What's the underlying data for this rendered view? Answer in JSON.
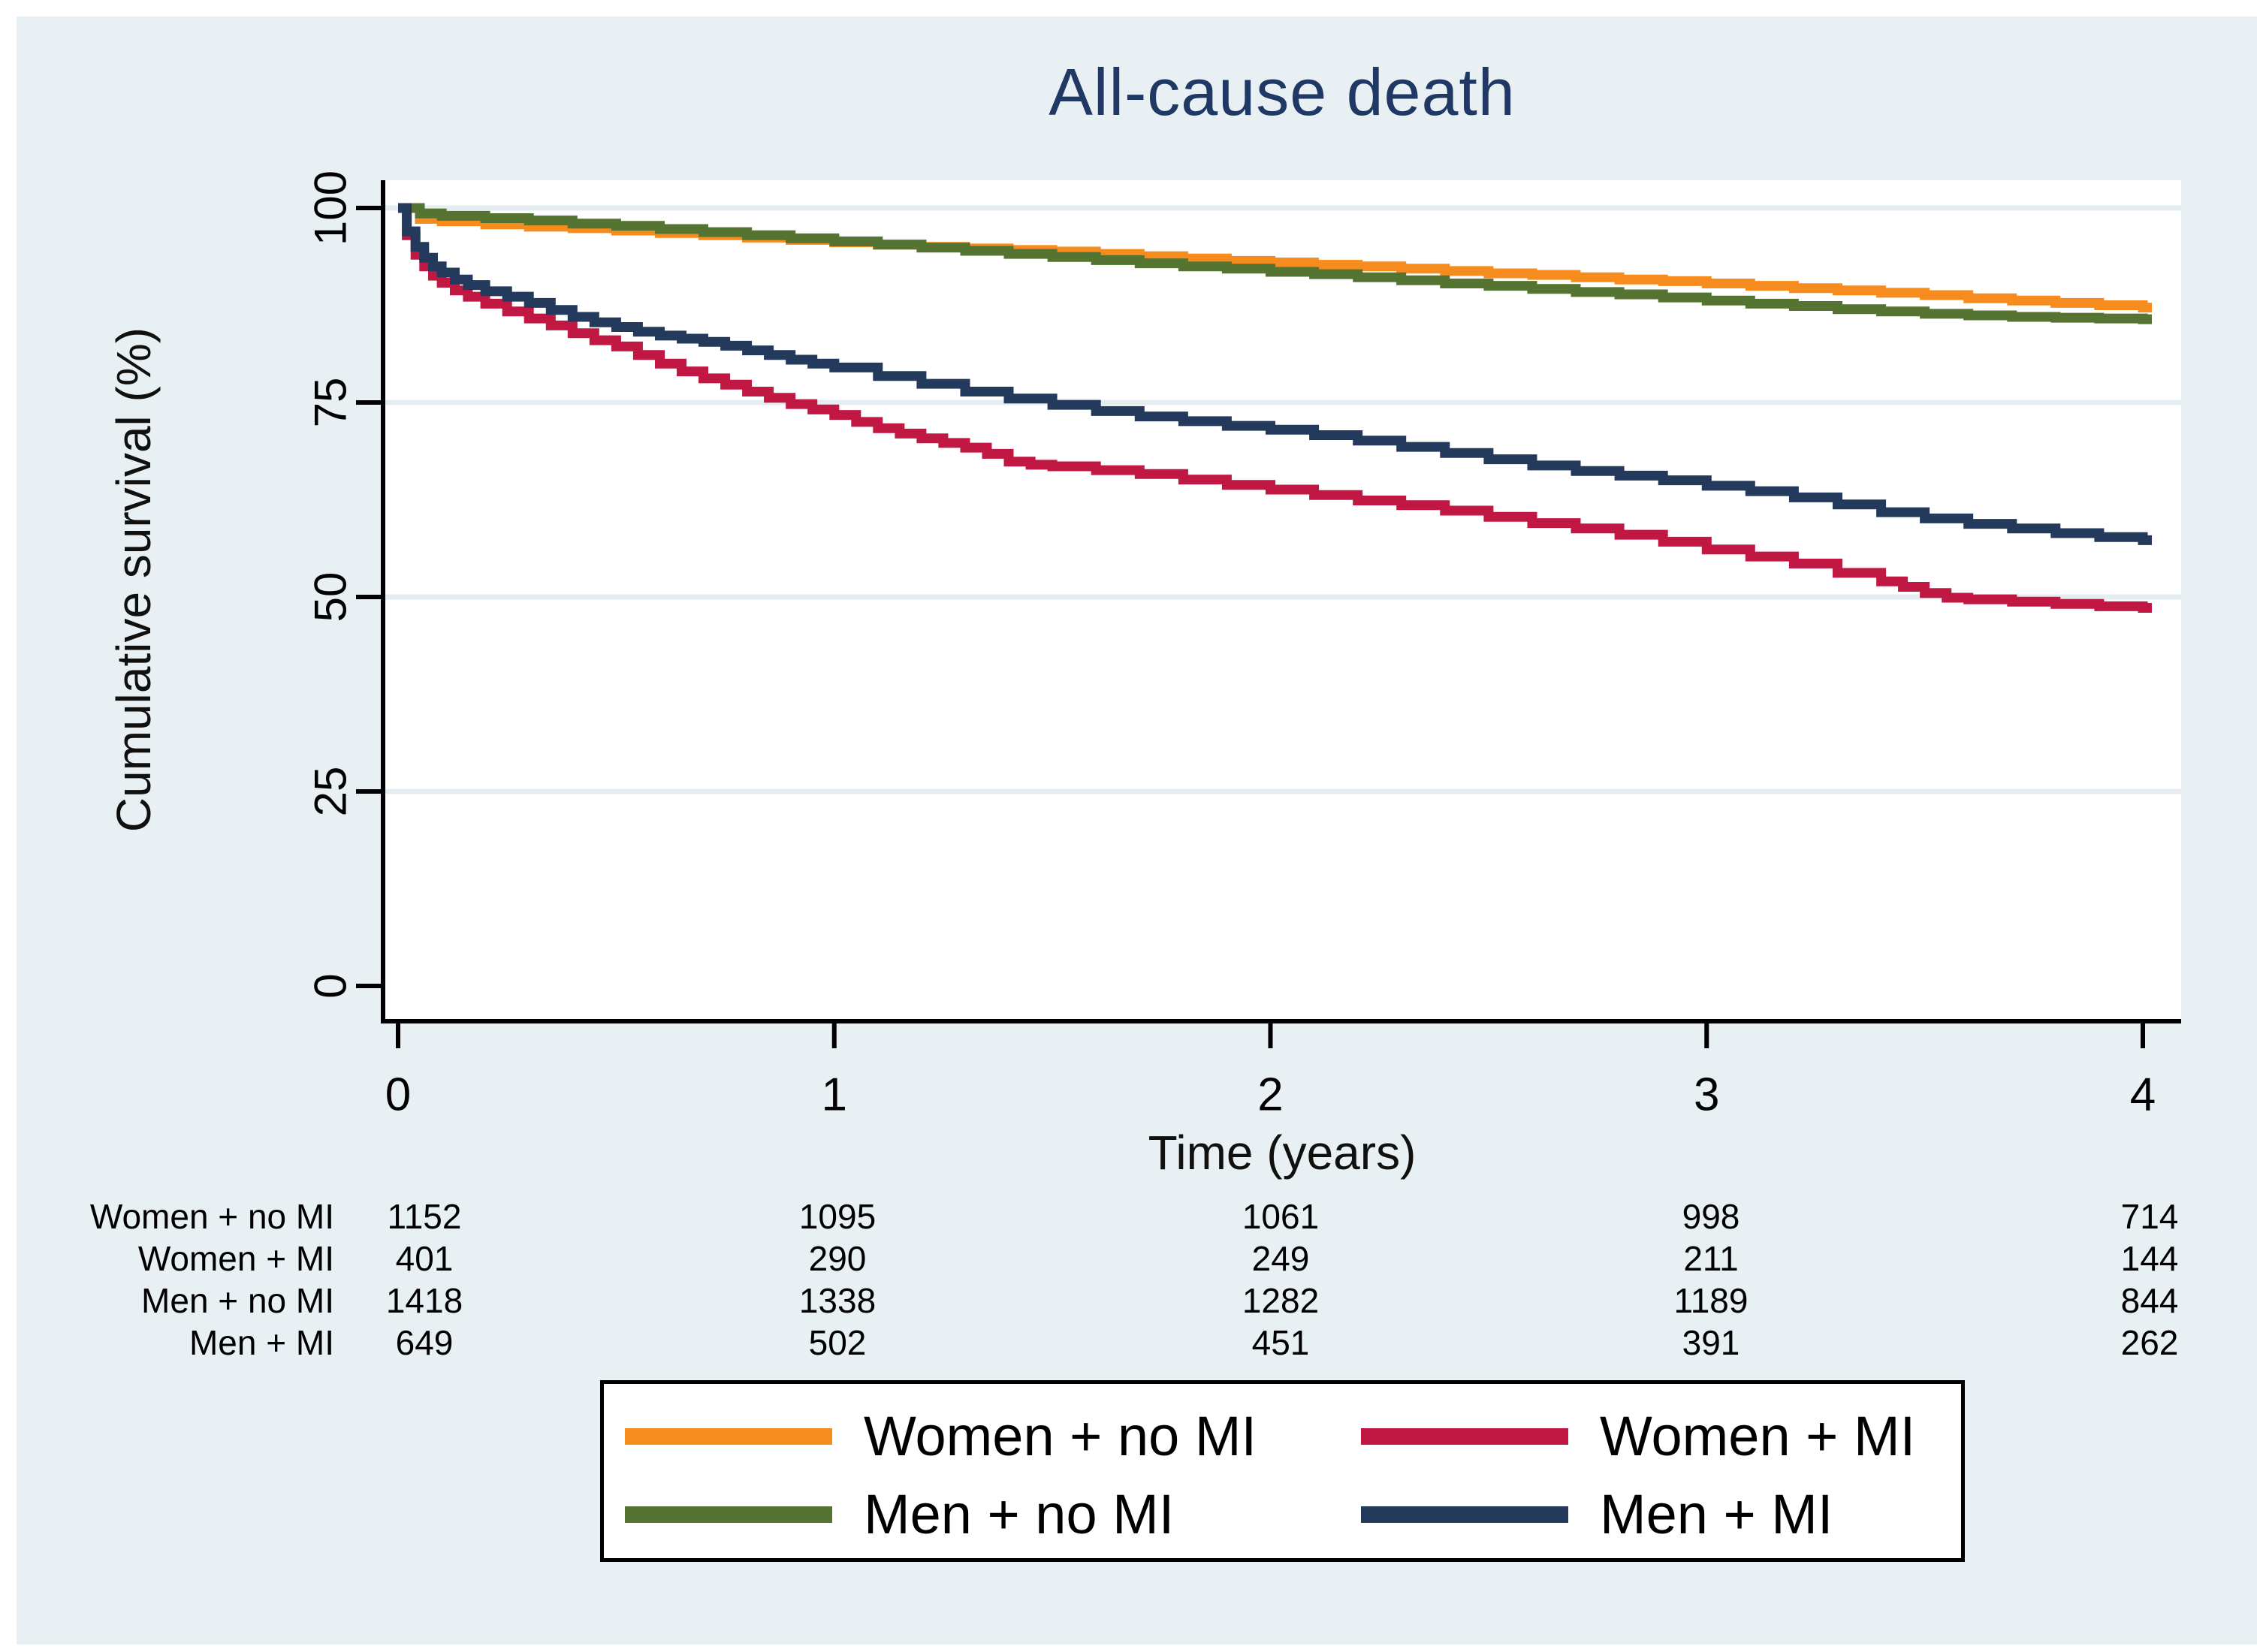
{
  "title": "All-cause death",
  "axes": {
    "xlabel": "Time (years)",
    "ylabel": "Cumulative survival (%)",
    "x_tick_labels": [
      "0",
      "1",
      "2",
      "3",
      "4"
    ],
    "y_tick_labels": [
      "0",
      "25",
      "50",
      "75",
      "100"
    ]
  },
  "colors": {
    "background": "#e9f0f3",
    "plot_background": "#ffffff",
    "gridline": "#e4edf0",
    "axis": "#000000",
    "title_text": "#1f3864",
    "orange": "#f68b1e",
    "cranberry": "#c11743",
    "olive": "#557331",
    "navy": "#233a5c"
  },
  "chart_data": {
    "type": "line",
    "step": true,
    "title": "All-cause death",
    "xlabel": "Time (years)",
    "ylabel": "Cumulative survival (%)",
    "xlim": [
      0,
      4
    ],
    "ylim": [
      0,
      100
    ],
    "x_ticks": [
      0,
      1,
      2,
      3,
      4
    ],
    "y_ticks": [
      0,
      25,
      50,
      75,
      100
    ],
    "grid": "horizontal",
    "legend_position": "bottom-box",
    "series": [
      {
        "name": "Women + no MI",
        "color": "#f68b1e",
        "points": [
          [
            0,
            100
          ],
          [
            0.05,
            98.6
          ],
          [
            0.1,
            98.3
          ],
          [
            0.2,
            97.9
          ],
          [
            0.3,
            97.6
          ],
          [
            0.4,
            97.4
          ],
          [
            0.5,
            97.1
          ],
          [
            0.6,
            96.8
          ],
          [
            0.7,
            96.5
          ],
          [
            0.8,
            96.2
          ],
          [
            0.9,
            95.9
          ],
          [
            1.0,
            95.6
          ],
          [
            1.1,
            95.3
          ],
          [
            1.2,
            95.0
          ],
          [
            1.3,
            94.8
          ],
          [
            1.4,
            94.6
          ],
          [
            1.5,
            94.4
          ],
          [
            1.6,
            94.1
          ],
          [
            1.7,
            93.8
          ],
          [
            1.8,
            93.5
          ],
          [
            1.9,
            93.2
          ],
          [
            2.0,
            93.0
          ],
          [
            2.1,
            92.7
          ],
          [
            2.2,
            92.5
          ],
          [
            2.3,
            92.2
          ],
          [
            2.4,
            91.9
          ],
          [
            2.5,
            91.6
          ],
          [
            2.6,
            91.4
          ],
          [
            2.7,
            91.1
          ],
          [
            2.8,
            90.8
          ],
          [
            2.9,
            90.6
          ],
          [
            3.0,
            90.3
          ],
          [
            3.1,
            90.0
          ],
          [
            3.2,
            89.7
          ],
          [
            3.3,
            89.4
          ],
          [
            3.4,
            89.1
          ],
          [
            3.5,
            88.8
          ],
          [
            3.6,
            88.4
          ],
          [
            3.7,
            88.1
          ],
          [
            3.8,
            87.8
          ],
          [
            3.9,
            87.5
          ],
          [
            4.0,
            87.2
          ]
        ]
      },
      {
        "name": "Women + MI",
        "color": "#c11743",
        "points": [
          [
            0,
            100
          ],
          [
            0.02,
            96.5
          ],
          [
            0.04,
            94.0
          ],
          [
            0.06,
            92.5
          ],
          [
            0.08,
            91.3
          ],
          [
            0.1,
            90.4
          ],
          [
            0.13,
            89.4
          ],
          [
            0.16,
            88.6
          ],
          [
            0.2,
            87.7
          ],
          [
            0.25,
            86.7
          ],
          [
            0.3,
            85.8
          ],
          [
            0.35,
            84.9
          ],
          [
            0.4,
            83.9
          ],
          [
            0.45,
            83.0
          ],
          [
            0.5,
            82.2
          ],
          [
            0.55,
            81.1
          ],
          [
            0.6,
            80.0
          ],
          [
            0.65,
            79.0
          ],
          [
            0.7,
            78.1
          ],
          [
            0.75,
            77.3
          ],
          [
            0.8,
            76.4
          ],
          [
            0.85,
            75.6
          ],
          [
            0.9,
            74.8
          ],
          [
            0.95,
            74.1
          ],
          [
            1.0,
            73.4
          ],
          [
            1.05,
            72.5
          ],
          [
            1.1,
            71.7
          ],
          [
            1.15,
            71.0
          ],
          [
            1.2,
            70.4
          ],
          [
            1.25,
            69.8
          ],
          [
            1.3,
            69.2
          ],
          [
            1.35,
            68.4
          ],
          [
            1.4,
            67.4
          ],
          [
            1.45,
            67.0
          ],
          [
            1.5,
            66.8
          ],
          [
            1.6,
            66.3
          ],
          [
            1.7,
            65.8
          ],
          [
            1.8,
            65.1
          ],
          [
            1.9,
            64.4
          ],
          [
            2.0,
            63.8
          ],
          [
            2.1,
            63.1
          ],
          [
            2.2,
            62.4
          ],
          [
            2.3,
            61.8
          ],
          [
            2.4,
            61.1
          ],
          [
            2.5,
            60.3
          ],
          [
            2.6,
            59.5
          ],
          [
            2.7,
            58.8
          ],
          [
            2.8,
            58.0
          ],
          [
            2.9,
            57.1
          ],
          [
            3.0,
            56.1
          ],
          [
            3.1,
            55.2
          ],
          [
            3.2,
            54.3
          ],
          [
            3.3,
            53.1
          ],
          [
            3.4,
            52.0
          ],
          [
            3.45,
            51.3
          ],
          [
            3.5,
            50.5
          ],
          [
            3.55,
            49.9
          ],
          [
            3.6,
            49.7
          ],
          [
            3.7,
            49.4
          ],
          [
            3.8,
            49.1
          ],
          [
            3.9,
            48.8
          ],
          [
            4.0,
            48.6
          ]
        ]
      },
      {
        "name": "Men + no MI",
        "color": "#557331",
        "points": [
          [
            0,
            100
          ],
          [
            0.05,
            99.3
          ],
          [
            0.1,
            99.0
          ],
          [
            0.2,
            98.7
          ],
          [
            0.3,
            98.4
          ],
          [
            0.4,
            98.0
          ],
          [
            0.5,
            97.7
          ],
          [
            0.6,
            97.3
          ],
          [
            0.7,
            96.9
          ],
          [
            0.8,
            96.5
          ],
          [
            0.9,
            96.1
          ],
          [
            1.0,
            95.7
          ],
          [
            1.1,
            95.3
          ],
          [
            1.2,
            94.9
          ],
          [
            1.3,
            94.5
          ],
          [
            1.4,
            94.1
          ],
          [
            1.5,
            93.7
          ],
          [
            1.6,
            93.3
          ],
          [
            1.7,
            92.9
          ],
          [
            1.8,
            92.5
          ],
          [
            1.9,
            92.2
          ],
          [
            2.0,
            91.8
          ],
          [
            2.1,
            91.5
          ],
          [
            2.2,
            91.1
          ],
          [
            2.3,
            90.7
          ],
          [
            2.4,
            90.3
          ],
          [
            2.5,
            90.0
          ],
          [
            2.6,
            89.6
          ],
          [
            2.7,
            89.2
          ],
          [
            2.8,
            88.9
          ],
          [
            2.9,
            88.5
          ],
          [
            3.0,
            88.1
          ],
          [
            3.1,
            87.7
          ],
          [
            3.2,
            87.4
          ],
          [
            3.3,
            87.0
          ],
          [
            3.4,
            86.7
          ],
          [
            3.5,
            86.4
          ],
          [
            3.6,
            86.2
          ],
          [
            3.7,
            86.0
          ],
          [
            3.8,
            85.9
          ],
          [
            3.9,
            85.8
          ],
          [
            4.0,
            85.7
          ]
        ]
      },
      {
        "name": "Men + MI",
        "color": "#233a5c",
        "points": [
          [
            0,
            100
          ],
          [
            0.02,
            97.0
          ],
          [
            0.04,
            95.0
          ],
          [
            0.06,
            93.6
          ],
          [
            0.08,
            92.5
          ],
          [
            0.1,
            91.7
          ],
          [
            0.13,
            90.8
          ],
          [
            0.16,
            90.1
          ],
          [
            0.2,
            89.3
          ],
          [
            0.25,
            88.6
          ],
          [
            0.3,
            87.8
          ],
          [
            0.35,
            86.9
          ],
          [
            0.4,
            86.0
          ],
          [
            0.45,
            85.3
          ],
          [
            0.5,
            84.7
          ],
          [
            0.55,
            84.1
          ],
          [
            0.6,
            83.6
          ],
          [
            0.65,
            83.2
          ],
          [
            0.7,
            82.8
          ],
          [
            0.75,
            82.3
          ],
          [
            0.8,
            81.7
          ],
          [
            0.85,
            81.1
          ],
          [
            0.9,
            80.5
          ],
          [
            0.95,
            80.0
          ],
          [
            1.0,
            79.5
          ],
          [
            1.1,
            78.4
          ],
          [
            1.2,
            77.4
          ],
          [
            1.3,
            76.4
          ],
          [
            1.4,
            75.5
          ],
          [
            1.5,
            74.7
          ],
          [
            1.6,
            73.9
          ],
          [
            1.7,
            73.2
          ],
          [
            1.8,
            72.6
          ],
          [
            1.9,
            72.0
          ],
          [
            2.0,
            71.5
          ],
          [
            2.1,
            70.8
          ],
          [
            2.2,
            70.1
          ],
          [
            2.3,
            69.3
          ],
          [
            2.4,
            68.5
          ],
          [
            2.5,
            67.7
          ],
          [
            2.6,
            66.9
          ],
          [
            2.7,
            66.2
          ],
          [
            2.8,
            65.6
          ],
          [
            2.9,
            65.0
          ],
          [
            3.0,
            64.3
          ],
          [
            3.1,
            63.6
          ],
          [
            3.2,
            62.8
          ],
          [
            3.3,
            61.9
          ],
          [
            3.4,
            60.9
          ],
          [
            3.5,
            60.1
          ],
          [
            3.6,
            59.4
          ],
          [
            3.7,
            58.8
          ],
          [
            3.8,
            58.2
          ],
          [
            3.9,
            57.7
          ],
          [
            4.0,
            57.3
          ]
        ]
      }
    ]
  },
  "risk_table": {
    "time_points": [
      0,
      1,
      2,
      3,
      4
    ],
    "rows": [
      {
        "label": "Women + no MI",
        "values": [
          "1152",
          "1095",
          "1061",
          "998",
          "714"
        ]
      },
      {
        "label": "Women + MI",
        "values": [
          "401",
          "290",
          "249",
          "211",
          "144"
        ]
      },
      {
        "label": "Men + no MI",
        "values": [
          "1418",
          "1338",
          "1282",
          "1189",
          "844"
        ]
      },
      {
        "label": "Men + MI",
        "values": [
          "649",
          "502",
          "451",
          "391",
          "262"
        ]
      }
    ]
  },
  "legend": {
    "entries": [
      {
        "label": "Women + no MI",
        "color": "#f68b1e"
      },
      {
        "label": "Women + MI",
        "color": "#c11743"
      },
      {
        "label": "Men + no MI",
        "color": "#557331"
      },
      {
        "label": "Men + MI",
        "color": "#233a5c"
      }
    ]
  }
}
